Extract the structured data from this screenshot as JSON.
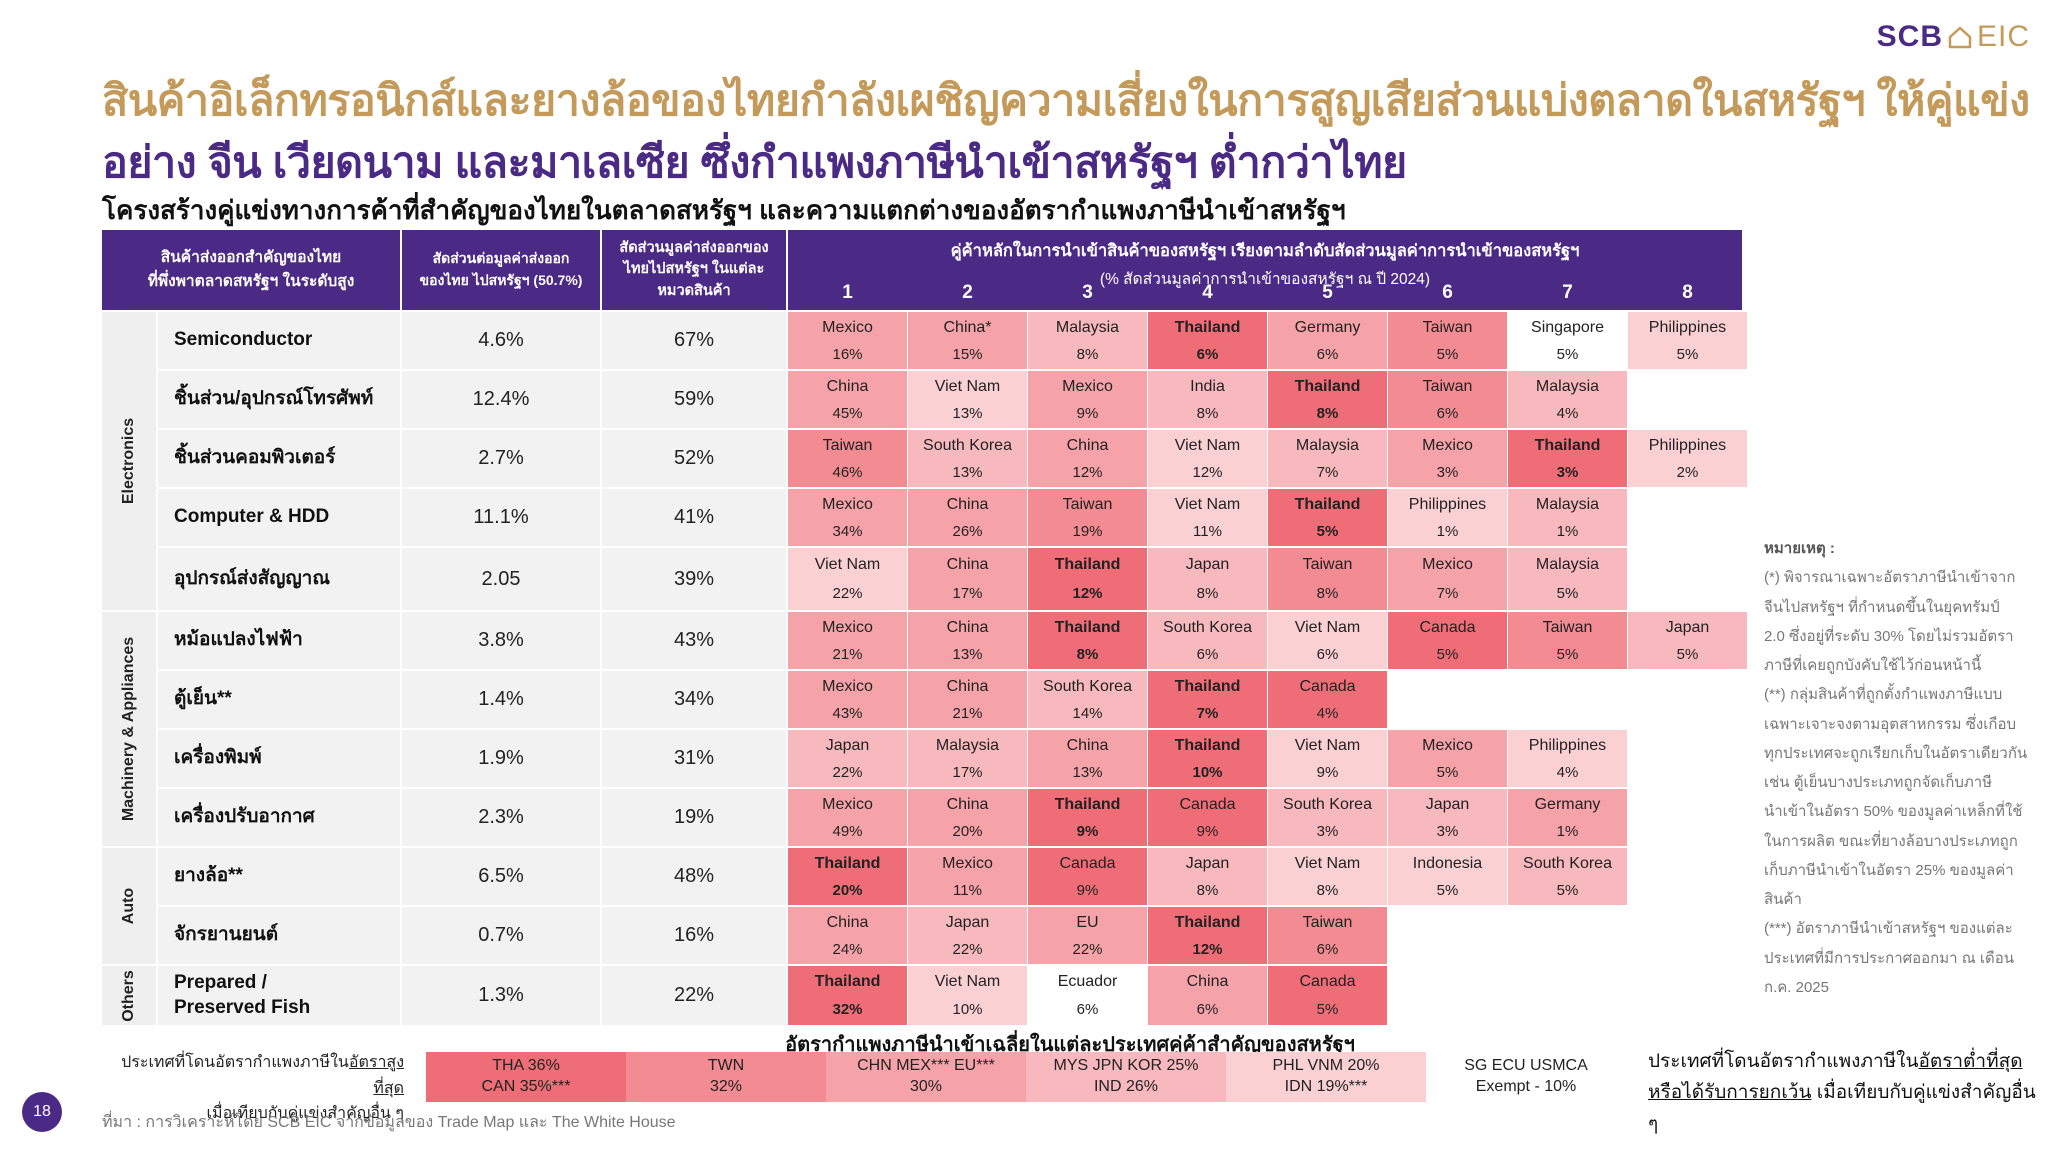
{
  "logo": {
    "scb": "SCB",
    "eic": "EIC"
  },
  "title": {
    "line1": "สินค้าอิเล็กทรอนิกส์และยางล้อของไทยกำลังเผชิญความเสี่ยงในการสูญเสียส่วนแบ่งตลาดในสหรัฐฯ ให้คู่แข่ง",
    "line2": "อย่าง จีน เวียดนาม และมาเลเซีย ซึ่งกำแพงภาษีนำเข้าสหรัฐฯ ต่ำกว่าไทย",
    "subtitle": "โครงสร้างคู่แข่งทางการค้าที่สำคัญของไทยในตลาดสหรัฐฯ และความแตกต่างของอัตรากำแพงภาษีนำเข้าสหรัฐฯ"
  },
  "table_header": {
    "product": "สินค้าส่งออกสำคัญของไทย\nที่พึ่งพาตลาดสหรัฐฯ ในระดับสูง",
    "share": "สัดส่วนต่อมูลค่าส่งออก\nของไทย ไปสหรัฐฯ (50.7%)",
    "cat_share": "สัดส่วนมูลค่าส่งออกของ\nไทยไปสหรัฐฯ ในแต่ละ\nหมวดสินค้า",
    "competitors_l1": "คู่ค้าหลักในการนำเข้าสินค้าของสหรัฐฯ เรียงตามลำดับสัดส่วนมูลค่าการนำเข้าของสหรัฐฯ",
    "competitors_l2": "(% สัดส่วนมูลค่าการนำเข้าของสหรัฐฯ ณ ปี 2024)",
    "ranks": [
      "1",
      "2",
      "3",
      "4",
      "5",
      "6",
      "7",
      "8"
    ]
  },
  "groups": [
    {
      "label": "Electronics"
    },
    {
      "label": "Machinery & Appliances"
    },
    {
      "label": "Auto"
    },
    {
      "label": "Others"
    }
  ],
  "rows": [
    {
      "product": "Semiconductor",
      "share": "4.6%",
      "cat_share": "67%",
      "cells": [
        {
          "n": "Mexico",
          "p": "16%"
        },
        {
          "n": "China*",
          "p": "15%"
        },
        {
          "n": "Malaysia",
          "p": "8%"
        },
        {
          "n": "Thailand",
          "p": "6%"
        },
        {
          "n": "Germany",
          "p": "6%"
        },
        {
          "n": "Taiwan",
          "p": "5%"
        },
        {
          "n": "Singapore",
          "p": "5%"
        },
        {
          "n": "Philippines",
          "p": "5%"
        }
      ]
    },
    {
      "product": "ชิ้นส่วน/อุปกรณ์โทรศัพท์",
      "share": "12.4%",
      "cat_share": "59%",
      "cells": [
        {
          "n": "China",
          "p": "45%"
        },
        {
          "n": "Viet Nam",
          "p": "13%"
        },
        {
          "n": "Mexico",
          "p": "9%"
        },
        {
          "n": "India",
          "p": "8%"
        },
        {
          "n": "Thailand",
          "p": "8%"
        },
        {
          "n": "Taiwan",
          "p": "6%"
        },
        {
          "n": "Malaysia",
          "p": "4%"
        },
        null
      ]
    },
    {
      "product": "ชิ้นส่วนคอมพิวเตอร์",
      "share": "2.7%",
      "cat_share": "52%",
      "cells": [
        {
          "n": "Taiwan",
          "p": "46%"
        },
        {
          "n": "South Korea",
          "p": "13%"
        },
        {
          "n": "China",
          "p": "12%"
        },
        {
          "n": "Viet Nam",
          "p": "12%"
        },
        {
          "n": "Malaysia",
          "p": "7%"
        },
        {
          "n": "Mexico",
          "p": "3%"
        },
        {
          "n": "Thailand",
          "p": "3%"
        },
        {
          "n": "Philippines",
          "p": "2%"
        }
      ]
    },
    {
      "product": "Computer & HDD",
      "share": "11.1%",
      "cat_share": "41%",
      "cells": [
        {
          "n": "Mexico",
          "p": "34%"
        },
        {
          "n": "China",
          "p": "26%"
        },
        {
          "n": "Taiwan",
          "p": "19%"
        },
        {
          "n": "Viet Nam",
          "p": "11%"
        },
        {
          "n": "Thailand",
          "p": "5%"
        },
        {
          "n": "Philippines",
          "p": "1%"
        },
        {
          "n": "Malaysia",
          "p": "1%"
        },
        null
      ]
    },
    {
      "product": "อุปกรณ์ส่งสัญญาณ",
      "share": "2.05",
      "cat_share": "39%",
      "cells": [
        {
          "n": "Viet Nam",
          "p": "22%"
        },
        {
          "n": "China",
          "p": "17%"
        },
        {
          "n": "Thailand",
          "p": "12%"
        },
        {
          "n": "Japan",
          "p": "8%"
        },
        {
          "n": "Taiwan",
          "p": "8%"
        },
        {
          "n": "Mexico",
          "p": "7%"
        },
        {
          "n": "Malaysia",
          "p": "5%"
        },
        null
      ]
    },
    {
      "product": "หม้อแปลงไฟฟ้า",
      "share": "3.8%",
      "cat_share": "43%",
      "cells": [
        {
          "n": "Mexico",
          "p": "21%"
        },
        {
          "n": "China",
          "p": "13%"
        },
        {
          "n": "Thailand",
          "p": "8%"
        },
        {
          "n": "South Korea",
          "p": "6%"
        },
        {
          "n": "Viet Nam",
          "p": "6%"
        },
        {
          "n": "Canada",
          "p": "5%"
        },
        {
          "n": "Taiwan",
          "p": "5%"
        },
        {
          "n": "Japan",
          "p": "5%"
        }
      ]
    },
    {
      "product": "ตู้เย็น**",
      "share": "1.4%",
      "cat_share": "34%",
      "cells": [
        {
          "n": "Mexico",
          "p": "43%"
        },
        {
          "n": "China",
          "p": "21%"
        },
        {
          "n": "South Korea",
          "p": "14%"
        },
        {
          "n": "Thailand",
          "p": "7%"
        },
        {
          "n": "Canada",
          "p": "4%"
        },
        null,
        null,
        null
      ]
    },
    {
      "product": "เครื่องพิมพ์",
      "share": "1.9%",
      "cat_share": "31%",
      "cells": [
        {
          "n": "Japan",
          "p": "22%"
        },
        {
          "n": "Malaysia",
          "p": "17%"
        },
        {
          "n": "China",
          "p": "13%"
        },
        {
          "n": "Thailand",
          "p": "10%"
        },
        {
          "n": "Viet Nam",
          "p": "9%"
        },
        {
          "n": "Mexico",
          "p": "5%"
        },
        {
          "n": "Philippines",
          "p": "4%"
        },
        null
      ]
    },
    {
      "product": "เครื่องปรับอากาศ",
      "share": "2.3%",
      "cat_share": "19%",
      "cells": [
        {
          "n": "Mexico",
          "p": "49%"
        },
        {
          "n": "China",
          "p": "20%"
        },
        {
          "n": "Thailand",
          "p": "9%"
        },
        {
          "n": "Canada",
          "p": "9%"
        },
        {
          "n": "South Korea",
          "p": "3%"
        },
        {
          "n": "Japan",
          "p": "3%"
        },
        {
          "n": "Germany",
          "p": "1%"
        },
        null
      ]
    },
    {
      "product": "ยางล้อ**",
      "share": "6.5%",
      "cat_share": "48%",
      "cells": [
        {
          "n": "Thailand",
          "p": "20%"
        },
        {
          "n": "Mexico",
          "p": "11%"
        },
        {
          "n": "Canada",
          "p": "9%"
        },
        {
          "n": "Japan",
          "p": "8%"
        },
        {
          "n": "Viet Nam",
          "p": "8%"
        },
        {
          "n": "Indonesia",
          "p": "5%"
        },
        {
          "n": "South Korea",
          "p": "5%"
        },
        null
      ]
    },
    {
      "product": "จักรยานยนต์",
      "share": "0.7%",
      "cat_share": "16%",
      "cells": [
        {
          "n": "China",
          "p": "24%"
        },
        {
          "n": "Japan",
          "p": "22%"
        },
        {
          "n": "EU",
          "p": "22%"
        },
        {
          "n": "Thailand",
          "p": "12%"
        },
        {
          "n": "Taiwan",
          "p": "6%"
        },
        null,
        null,
        null
      ]
    },
    {
      "product": "Prepared /\nPreserved Fish",
      "share": "1.3%",
      "cat_share": "22%",
      "cells": [
        {
          "n": "Thailand",
          "p": "32%"
        },
        {
          "n": "Viet Nam",
          "p": "10%"
        },
        {
          "n": "Ecuador",
          "p": "6%"
        },
        {
          "n": "China",
          "p": "6%"
        },
        {
          "n": "Canada",
          "p": "5%"
        },
        null,
        null,
        null
      ]
    }
  ],
  "tariff": {
    "title": "อัตรากำแพงภาษีนำเข้าเฉลี่ยในแต่ละประเทศคู่ค้าสำคัญของสหรัฐฯ",
    "left_note_1": "ประเทศที่โดนอัตรากำแพงภาษีใน",
    "left_note_1u": "อัตราสูงที่สุด",
    "left_note_2": "เมื่อเทียบกับคู่แข่งสำคัญอื่น ๆ",
    "segments": [
      {
        "l1": "THA 36%",
        "l2": "CAN 35%***",
        "color": "#ef6d76"
      },
      {
        "l1": "TWN",
        "l2": "32%",
        "color": "#f38b92"
      },
      {
        "l1": "CHN MEX*** EU***",
        "l2": "30%",
        "color": "#f5a3a8"
      },
      {
        "l1": "MYS JPN KOR 25%",
        "l2": "IND 26%",
        "color": "#f7b9bd"
      },
      {
        "l1": "PHL VNM 20%",
        "l2": "IDN 19%***",
        "color": "#fad0d3"
      },
      {
        "l1": "SG ECU USMCA",
        "l2": "Exempt - 10%",
        "color": "#ffffff"
      }
    ],
    "right_note_1": "ประเทศที่โดนอัตรากำแพงภาษีใน",
    "right_note_1u": "อัตราต่ำที่สุด",
    "right_note_2u": "หรือได้รับการยกเว้น",
    "right_note_2": " เมื่อเทียบกับคู่แข่งสำคัญอื่น ๆ"
  },
  "remarks": {
    "title": "หมายเหตุ :",
    "lines": [
      "(*) พิจารณาเฉพาะอัตราภาษีนำเข้าจาก",
      "จีนไปสหรัฐฯ ที่กำหนดขึ้นในยุคทรัมป์",
      "2.0 ซึ่งอยู่ที่ระดับ 30% โดยไม่รวมอัตรา",
      "ภาษีที่เคยถูกบังคับใช้ไว้ก่อนหน้านี้",
      "(**) กลุ่มสินค้าที่ถูกตั้งกำแพงภาษีแบบ",
      "เฉพาะเจาะจงตามอุตสาหกรรม ซึ่งเกือบ",
      "ทุกประเทศจะถูกเรียกเก็บในอัตราเดียวกัน",
      "เช่น ตู้เย็นบางประเภทถูกจัดเก็บภาษี",
      "นำเข้าในอัตรา 50% ของมูลค่าเหล็กที่ใช้",
      "ในการผลิต ขณะที่ยางล้อบางประเภทถูก",
      "เก็บภาษีนำเข้าในอัตรา 25% ของมูลค่า",
      "สินค้า",
      "(***) อัตราภาษีนำเข้าสหรัฐฯ ของแต่ละ",
      "ประเทศที่มีการประกาศออกมา ณ เดือน",
      "ก.ค. 2025"
    ]
  },
  "footer": {
    "page": "18",
    "source": "ที่มา : การวิเคราะห์โดย SCB EIC จากข้อมูลของ Trade Map และ The White House"
  },
  "colors": {
    "purple": "#4b2a86",
    "gold": "#c49a5a",
    "tier36": "#ef6d76",
    "tier32": "#f38b92",
    "tier30": "#f5a3a8",
    "tier25": "#f7b9bd",
    "tier20": "#fad0d3",
    "exempt": "#ffffff"
  }
}
